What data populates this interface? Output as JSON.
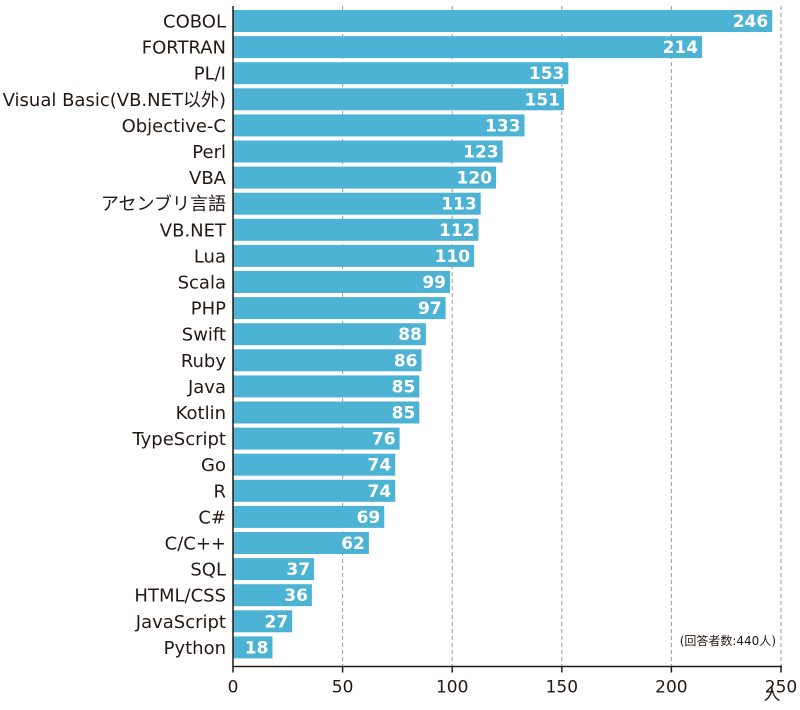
{
  "chart_data": {
    "type": "bar",
    "orientation": "horizontal",
    "categories": [
      "COBOL",
      "FORTRAN",
      "PL/I",
      "Visual Basic(VB.NET以外)",
      "Objective-C",
      "Perl",
      "VBA",
      "アセンブリ言語",
      "VB.NET",
      "Lua",
      "Scala",
      "PHP",
      "Swift",
      "Ruby",
      "Java",
      "Kotlin",
      "TypeScript",
      "Go",
      "R",
      "C#",
      "C/C++",
      "SQL",
      "HTML/CSS",
      "JavaScript",
      "Python"
    ],
    "values": [
      246,
      214,
      153,
      151,
      133,
      123,
      120,
      113,
      112,
      110,
      99,
      97,
      88,
      86,
      85,
      85,
      76,
      74,
      74,
      69,
      62,
      37,
      36,
      27,
      18
    ],
    "title": "",
    "xlabel": "人",
    "ylabel": "",
    "xlim": [
      0,
      250
    ],
    "xticks": [
      0,
      50,
      100,
      150,
      200,
      250
    ],
    "grid": true,
    "annotation": "(回答者数:440人)",
    "bar_color": "#4db3d4"
  }
}
